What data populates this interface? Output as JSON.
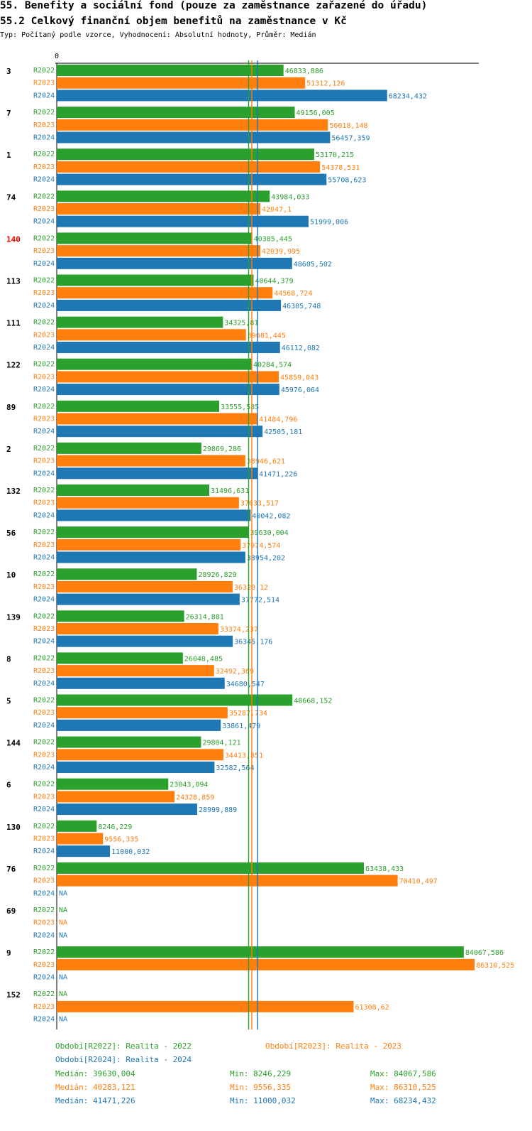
{
  "header": {
    "title": "55. Benefity a sociální fond (pouze za zaměstnance zařazené do úřadu)",
    "subtitle": "55.2 Celkový finanční objem benefitů na zaměstnance v Kč",
    "meta": "Typ: Počítaný podle vzorce, Vyhodnocení: Absolutní hodnoty, Průměr: Medián"
  },
  "chart_data": {
    "type": "bar",
    "orientation": "horizontal",
    "axis_zero_label": "0",
    "xlim": [
      0,
      90000
    ],
    "highlight_group": "140",
    "na_label": "NA",
    "colors": {
      "R2022": "#2ca02c",
      "R2023": "#ff7f0e",
      "R2024": "#1f77b4",
      "highlight": "#ff0000"
    },
    "series_names": [
      "R2022",
      "R2023",
      "R2024"
    ],
    "groups": [
      {
        "label": "3",
        "values": [
          "46833,886",
          "51312,126",
          "68234,432"
        ]
      },
      {
        "label": "7",
        "values": [
          "49156,005",
          "56018,148",
          "56457,359"
        ]
      },
      {
        "label": "1",
        "values": [
          "53170,215",
          "54378,531",
          "55708,623"
        ]
      },
      {
        "label": "74",
        "values": [
          "43984,033",
          "42047,1",
          "51999,006"
        ]
      },
      {
        "label": "140",
        "values": [
          "40385,445",
          "42039,995",
          "48605,502"
        ]
      },
      {
        "label": "113",
        "values": [
          "40644,379",
          "44568,724",
          "46305,748"
        ]
      },
      {
        "label": "111",
        "values": [
          "34325,81",
          "39081,445",
          "46112,082"
        ]
      },
      {
        "label": "122",
        "values": [
          "40284,574",
          "45859,043",
          "45976,064"
        ]
      },
      {
        "label": "89",
        "values": [
          "33555,585",
          "41484,796",
          "42505,181"
        ]
      },
      {
        "label": "2",
        "values": [
          "29869,286",
          "38946,621",
          "41471,226"
        ]
      },
      {
        "label": "132",
        "values": [
          "31496,631",
          "37633,517",
          "40042,082"
        ]
      },
      {
        "label": "56",
        "values": [
          "39630,004",
          "37974,574",
          "38954,202"
        ]
      },
      {
        "label": "10",
        "values": [
          "28926,829",
          "36320,12",
          "37772,514"
        ]
      },
      {
        "label": "139",
        "values": [
          "26314,881",
          "33374,237",
          "36345,176"
        ]
      },
      {
        "label": "8",
        "values": [
          "26048,485",
          "32492,369",
          "34680,547"
        ]
      },
      {
        "label": "5",
        "values": [
          "48668,152",
          "35287,734",
          "33861,479"
        ]
      },
      {
        "label": "144",
        "values": [
          "29804,121",
          "34413,851",
          "32582,564"
        ]
      },
      {
        "label": "6",
        "values": [
          "23043,094",
          "24328,859",
          "28999,889"
        ]
      },
      {
        "label": "130",
        "values": [
          "8246,229",
          "9556,335",
          "11000,032"
        ]
      },
      {
        "label": "76",
        "values": [
          "63438,433",
          "70410,497",
          null
        ]
      },
      {
        "label": "69",
        "values": [
          null,
          null,
          null
        ]
      },
      {
        "label": "9",
        "values": [
          "84067,586",
          "86310,525",
          null
        ]
      },
      {
        "label": "152",
        "values": [
          null,
          "61308,62",
          null
        ]
      }
    ],
    "medians": [
      39630.004,
      40283.121,
      41471.226
    ]
  },
  "legend": {
    "r2022": "Období[R2022]: Realita - 2022",
    "r2023": "Období[R2023]: Realita - 2023",
    "r2024": "Období[R2024]: Realita - 2024"
  },
  "stats": [
    {
      "median": "Medián: 39630,004",
      "min": "Min: 8246,229",
      "max": "Max: 84067,586"
    },
    {
      "median": "Medián: 40283,121",
      "min": "Min: 9556,335",
      "max": "Max: 86310,525"
    },
    {
      "median": "Medián: 41471,226",
      "min": "Min: 11000,032",
      "max": "Max: 68234,432"
    }
  ]
}
